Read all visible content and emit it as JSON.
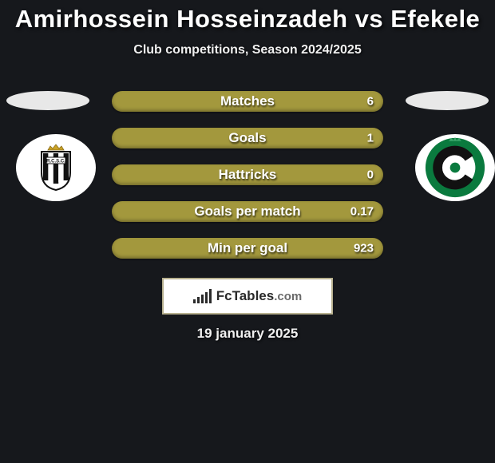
{
  "title": "Amirhossein Hosseinzadeh vs Efekele",
  "title_fontsize": 31,
  "subtitle": "Club competitions, Season 2024/2025",
  "subtitle_fontsize": 16,
  "date": "19 january 2025",
  "date_fontsize": 17,
  "background_color": "#16181c",
  "row_color": "#a3983d",
  "row_label_fontsize": 17,
  "row_value_fontsize": 15,
  "logo_text": "FcTables",
  "logo_domain": ".com",
  "badges": {
    "left": {
      "bg": "#ffffff",
      "shield_stripes": [
        "#111",
        "#fff",
        "#111",
        "#fff",
        "#111"
      ],
      "crown_color": "#c9a227"
    },
    "right": {
      "bg": "#ffffff",
      "ring_color": "#0a7a3e",
      "inner_color": "#111",
      "crown_color": "#3aa66a"
    }
  },
  "rows": [
    {
      "label": "Matches",
      "left": "",
      "right": "6"
    },
    {
      "label": "Goals",
      "left": "",
      "right": "1"
    },
    {
      "label": "Hattricks",
      "left": "",
      "right": "0"
    },
    {
      "label": "Goals per match",
      "left": "",
      "right": "0.17"
    },
    {
      "label": "Min per goal",
      "left": "",
      "right": "923"
    }
  ]
}
